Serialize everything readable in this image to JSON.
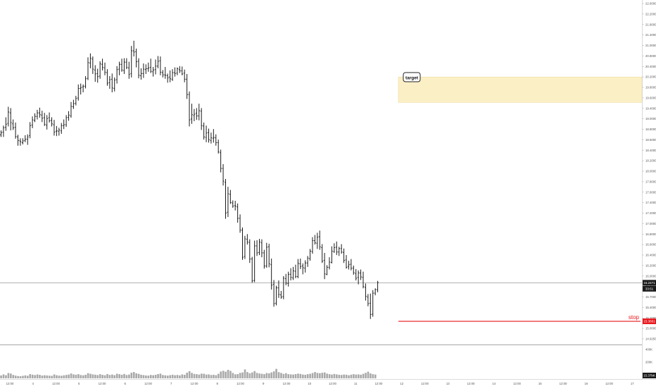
{
  "colors": {
    "background": "#ffffff",
    "bar": "#1a1a1a",
    "volume": "#a9a9a9",
    "target_fill": "#fbefc6",
    "target_border": "#eedda0",
    "stop": "#e8161b",
    "last_price_bg": "#1a1a1a",
    "stop_price_bg": "#e8161b",
    "grid_line": "#b0b0b0",
    "axis_text": "#555555"
  },
  "annotations": {
    "target_label": "target",
    "stop_label": "stop",
    "last_price": "16.2471",
    "countdown": "33:51",
    "stop_price": "15.3661",
    "volume_last": "15.37bK"
  },
  "chart_data": {
    "type": "ohlc",
    "title": "",
    "price_axis_ticks": [
      "22.6000",
      "22.2000",
      "21.8000",
      "21.4000",
      "21.0000",
      "20.8000",
      "20.4000",
      "20.2000",
      "19.8000",
      "19.6000",
      "19.4000",
      "19.0000",
      "18.8000",
      "18.6000",
      "18.4000",
      "18.2000",
      "18.0000",
      "17.8000",
      "17.6000",
      "17.4000",
      "17.2000",
      "17.0000",
      "16.8000",
      "16.6000",
      "16.4000",
      "16.2000",
      "16.0000",
      "15.8000",
      "15.7000",
      "15.4000",
      "15.2000",
      "15.0000",
      "14.9250"
    ],
    "volume_axis_ticks": [
      "400K",
      "200K"
    ],
    "time_axis_ticks": [
      "12:00",
      "4",
      "12:00",
      "5",
      "12:00",
      "6",
      "12:00",
      "7",
      "12:00",
      "8",
      "12:00",
      "9",
      "12:00",
      "10",
      "12:00",
      "11",
      "12:00",
      "12",
      "12:00",
      "13",
      "12:00",
      "14",
      "12:00",
      "15",
      "12:00",
      "16",
      "12:00",
      "17"
    ],
    "price_range": [
      14.9,
      22.63
    ],
    "volume_range": [
      0,
      420000
    ],
    "target_zone": [
      20.37,
      20.95
    ],
    "stop_level": 15.366,
    "last_price_line": 16.247,
    "bars": [
      [
        19.63,
        19.73,
        19.58,
        19.68
      ],
      [
        19.69,
        19.84,
        19.58,
        19.79
      ],
      [
        19.8,
        20.03,
        19.72,
        19.87
      ],
      [
        19.89,
        20.27,
        19.82,
        20.15
      ],
      [
        20.13,
        20.24,
        19.73,
        19.91
      ],
      [
        19.88,
        19.98,
        19.74,
        19.79
      ],
      [
        19.8,
        19.91,
        19.54,
        19.59
      ],
      [
        19.58,
        19.63,
        19.38,
        19.5
      ],
      [
        19.49,
        19.55,
        19.38,
        19.47
      ],
      [
        19.45,
        19.55,
        19.41,
        19.49
      ],
      [
        19.5,
        19.62,
        19.46,
        19.53
      ],
      [
        19.53,
        19.64,
        19.4,
        19.58
      ],
      [
        19.61,
        19.92,
        19.55,
        19.84
      ],
      [
        19.85,
        20.05,
        19.78,
        19.97
      ],
      [
        19.96,
        20.12,
        19.92,
        20.05
      ],
      [
        20.05,
        20.2,
        19.98,
        20.13
      ],
      [
        20.13,
        20.25,
        20.02,
        20.09
      ],
      [
        20.08,
        20.18,
        19.92,
        20.01
      ],
      [
        20.02,
        20.13,
        19.83,
        19.87
      ],
      [
        19.85,
        20.08,
        19.75,
        20.0
      ],
      [
        20.02,
        20.14,
        19.91,
        19.95
      ],
      [
        19.96,
        20.03,
        19.82,
        19.88
      ],
      [
        19.86,
        19.97,
        19.61,
        19.69
      ],
      [
        19.71,
        19.83,
        19.6,
        19.72
      ],
      [
        19.71,
        19.79,
        19.61,
        19.74
      ],
      [
        19.72,
        19.9,
        19.65,
        19.84
      ],
      [
        19.84,
        19.98,
        19.76,
        19.86
      ],
      [
        19.86,
        20.08,
        19.81,
        20.02
      ],
      [
        20.03,
        20.17,
        19.95,
        20.08
      ],
      [
        20.06,
        20.38,
        20.02,
        20.28
      ],
      [
        20.27,
        20.43,
        20.22,
        20.34
      ],
      [
        20.35,
        20.52,
        20.3,
        20.46
      ],
      [
        20.47,
        20.78,
        20.41,
        20.69
      ],
      [
        20.69,
        20.8,
        20.55,
        20.71
      ],
      [
        20.72,
        20.78,
        20.6,
        20.74
      ],
      [
        20.74,
        20.97,
        20.69,
        20.91
      ],
      [
        20.92,
        21.4,
        20.88,
        21.28
      ],
      [
        21.27,
        21.49,
        21.15,
        21.38
      ],
      [
        21.36,
        21.42,
        21.02,
        21.13
      ],
      [
        21.11,
        21.22,
        20.84,
        21.02
      ],
      [
        21.03,
        21.14,
        20.82,
        20.96
      ],
      [
        20.97,
        21.31,
        20.91,
        21.25
      ],
      [
        21.24,
        21.37,
        21.1,
        21.17
      ],
      [
        21.16,
        21.28,
        20.99,
        21.06
      ],
      [
        21.05,
        21.13,
        20.75,
        20.81
      ],
      [
        20.82,
        20.97,
        20.68,
        20.89
      ],
      [
        20.9,
        21.03,
        20.6,
        20.7
      ],
      [
        20.69,
        20.94,
        20.62,
        20.88
      ],
      [
        20.89,
        21.2,
        20.8,
        21.12
      ],
      [
        21.13,
        21.3,
        20.99,
        21.24
      ],
      [
        21.24,
        21.37,
        21.07,
        21.11
      ],
      [
        21.1,
        21.38,
        21.02,
        21.29
      ],
      [
        21.29,
        21.38,
        21.13,
        21.17
      ],
      [
        21.16,
        21.3,
        20.91,
        21.01
      ],
      [
        21.03,
        21.66,
        20.94,
        21.55
      ],
      [
        21.55,
        21.78,
        21.42,
        21.52
      ],
      [
        21.53,
        21.6,
        21.17,
        21.3
      ],
      [
        21.31,
        21.38,
        20.92,
        20.99
      ],
      [
        20.98,
        21.15,
        20.89,
        21.03
      ],
      [
        21.03,
        21.26,
        20.93,
        21.13
      ],
      [
        21.12,
        21.24,
        21.02,
        21.14
      ],
      [
        21.14,
        21.28,
        21.07,
        21.16
      ],
      [
        21.17,
        21.37,
        21.04,
        21.08
      ],
      [
        21.07,
        21.18,
        20.96,
        21.11
      ],
      [
        21.12,
        21.35,
        21.01,
        21.2
      ],
      [
        21.2,
        21.43,
        21.15,
        21.31
      ],
      [
        21.32,
        21.42,
        20.99,
        21.06
      ],
      [
        21.05,
        21.11,
        20.94,
        21.0
      ],
      [
        21.0,
        21.18,
        20.91,
        20.99
      ],
      [
        20.98,
        21.03,
        20.82,
        20.93
      ],
      [
        20.95,
        21.1,
        20.83,
        20.91
      ],
      [
        20.9,
        21.13,
        20.86,
        21.05
      ],
      [
        21.05,
        21.17,
        20.96,
        21.03
      ],
      [
        21.04,
        21.17,
        20.99,
        21.14
      ],
      [
        21.12,
        21.2,
        21.04,
        21.09
      ],
      [
        21.09,
        21.19,
        20.99,
        21.02
      ],
      [
        21.04,
        21.12,
        20.83,
        20.9
      ],
      [
        20.9,
        21.02,
        20.45,
        20.55
      ],
      [
        20.55,
        20.62,
        19.82,
        19.97
      ],
      [
        19.99,
        20.34,
        19.88,
        20.09
      ],
      [
        20.07,
        20.22,
        19.94,
        20.1
      ],
      [
        20.12,
        20.24,
        19.97,
        20.06
      ],
      [
        20.06,
        20.34,
        19.96,
        20.18
      ],
      [
        20.17,
        20.24,
        19.74,
        19.84
      ],
      [
        19.83,
        19.91,
        19.52,
        19.58
      ],
      [
        19.57,
        19.84,
        19.46,
        19.67
      ],
      [
        19.68,
        19.77,
        19.45,
        19.52
      ],
      [
        19.5,
        19.68,
        19.43,
        19.56
      ],
      [
        19.55,
        19.76,
        19.45,
        19.57
      ],
      [
        19.56,
        19.64,
        19.38,
        19.45
      ],
      [
        19.45,
        19.52,
        19.2,
        19.24
      ],
      [
        19.22,
        19.29,
        18.77,
        18.86
      ],
      [
        18.86,
        18.96,
        18.47,
        18.57
      ],
      [
        18.54,
        18.62,
        17.71,
        17.84
      ],
      [
        17.86,
        18.44,
        17.75,
        18.28
      ],
      [
        18.27,
        18.37,
        18.05,
        18.08
      ],
      [
        18.07,
        18.13,
        17.96,
        18.0
      ],
      [
        18.01,
        18.12,
        17.9,
        18.0
      ],
      [
        17.98,
        18.06,
        17.62,
        17.72
      ],
      [
        17.72,
        17.81,
        17.39,
        17.45
      ],
      [
        17.45,
        17.51,
        16.77,
        16.83
      ],
      [
        16.85,
        17.32,
        16.79,
        17.25
      ],
      [
        17.24,
        17.36,
        17.12,
        17.18
      ],
      [
        17.17,
        17.24,
        16.7,
        16.79
      ],
      [
        16.79,
        16.84,
        16.25,
        16.29
      ],
      [
        16.3,
        17.21,
        16.26,
        17.09
      ],
      [
        17.09,
        17.22,
        16.86,
        16.93
      ],
      [
        16.94,
        17.25,
        16.88,
        17.18
      ],
      [
        17.16,
        17.24,
        16.83,
        16.93
      ],
      [
        16.93,
        17.0,
        16.57,
        16.63
      ],
      [
        16.63,
        17.16,
        16.59,
        17.06
      ],
      [
        17.07,
        17.14,
        16.6,
        16.68
      ],
      [
        16.66,
        16.8,
        16.09,
        16.19
      ],
      [
        16.21,
        16.31,
        15.7,
        15.77
      ],
      [
        15.78,
        16.18,
        15.73,
        16.13
      ],
      [
        16.13,
        16.3,
        15.9,
        15.98
      ],
      [
        15.97,
        16.06,
        15.88,
        15.92
      ],
      [
        15.93,
        16.4,
        15.87,
        16.35
      ],
      [
        16.34,
        16.45,
        16.19,
        16.24
      ],
      [
        16.23,
        16.5,
        16.16,
        16.44
      ],
      [
        16.44,
        16.58,
        16.3,
        16.37
      ],
      [
        16.36,
        16.61,
        16.31,
        16.52
      ],
      [
        16.51,
        16.66,
        16.35,
        16.39
      ],
      [
        16.39,
        16.79,
        16.35,
        16.69
      ],
      [
        16.68,
        16.8,
        16.56,
        16.62
      ],
      [
        16.63,
        16.69,
        16.44,
        16.59
      ],
      [
        16.58,
        16.76,
        16.48,
        16.7
      ],
      [
        16.7,
        16.86,
        16.61,
        16.81
      ],
      [
        16.8,
        17.02,
        16.75,
        16.97
      ],
      [
        16.96,
        17.29,
        16.91,
        17.21
      ],
      [
        17.21,
        17.34,
        17.12,
        17.16
      ],
      [
        17.15,
        17.39,
        17.02,
        17.29
      ],
      [
        17.3,
        17.44,
        17.0,
        17.07
      ],
      [
        17.05,
        17.13,
        16.7,
        16.74
      ],
      [
        16.76,
        16.93,
        16.33,
        16.45
      ],
      [
        16.44,
        16.65,
        16.42,
        16.6
      ],
      [
        16.6,
        16.83,
        16.55,
        16.72
      ],
      [
        16.71,
        17.08,
        16.69,
        16.97
      ],
      [
        16.96,
        17.15,
        16.93,
        17.05
      ],
      [
        17.06,
        17.19,
        16.88,
        16.95
      ],
      [
        16.95,
        17.07,
        16.86,
        17.03
      ],
      [
        17.03,
        17.13,
        16.91,
        16.95
      ],
      [
        16.94,
        17.03,
        16.7,
        16.76
      ],
      [
        16.77,
        16.88,
        16.57,
        16.6
      ],
      [
        16.62,
        16.75,
        16.55,
        16.66
      ],
      [
        16.67,
        16.79,
        16.53,
        16.58
      ],
      [
        16.58,
        16.64,
        16.43,
        16.48
      ],
      [
        16.46,
        16.56,
        16.3,
        16.35
      ],
      [
        16.37,
        16.53,
        16.21,
        16.47
      ],
      [
        16.47,
        16.55,
        16.31,
        16.38
      ],
      [
        16.37,
        16.5,
        16.12,
        16.16
      ],
      [
        16.14,
        16.23,
        15.84,
        15.94
      ],
      [
        15.92,
        15.99,
        15.71,
        15.77
      ],
      [
        15.78,
        16.0,
        15.42,
        15.52
      ],
      [
        15.53,
        16.08,
        15.47,
        16.01
      ],
      [
        16.01,
        16.12,
        15.96,
        16.09
      ],
      [
        16.09,
        16.29,
        16.03,
        16.25
      ]
    ],
    "volume": [
      0.38,
      0.52,
      0.41,
      0.7,
      0.63,
      0.45,
      0.36,
      0.3,
      0.28,
      0.33,
      0.39,
      0.34,
      0.56,
      0.48,
      0.43,
      0.51,
      0.46,
      0.37,
      0.41,
      0.38,
      0.35,
      0.33,
      0.52,
      0.41,
      0.36,
      0.34,
      0.4,
      0.45,
      0.5,
      0.64,
      0.52,
      0.48,
      0.55,
      0.44,
      0.4,
      0.47,
      0.68,
      0.6,
      0.52,
      0.48,
      0.43,
      0.55,
      0.46,
      0.41,
      0.57,
      0.45,
      0.5,
      0.42,
      0.61,
      0.55,
      0.47,
      0.58,
      0.44,
      0.5,
      0.74,
      0.83,
      0.66,
      0.59,
      0.47,
      0.43,
      0.38,
      0.36,
      0.45,
      0.41,
      0.47,
      0.56,
      0.62,
      0.44,
      0.4,
      0.36,
      0.42,
      0.48,
      0.41,
      0.45,
      0.39,
      0.52,
      0.47,
      0.75,
      0.95,
      0.72,
      0.58,
      0.55,
      0.5,
      0.62,
      0.6,
      0.5,
      0.52,
      0.44,
      0.47,
      0.42,
      0.6,
      0.9,
      1.0,
      0.88,
      1.12,
      0.98,
      0.71,
      0.53,
      0.56,
      0.72,
      0.78,
      1.18,
      0.83,
      0.67,
      0.78,
      0.96,
      0.72,
      0.64,
      0.6,
      0.55,
      0.7,
      0.66,
      0.78,
      0.92,
      1.25,
      0.82,
      0.71,
      0.58,
      0.68,
      0.55,
      0.52,
      0.5,
      0.56,
      0.62,
      0.58,
      0.5,
      0.47,
      0.55,
      0.6,
      0.7,
      0.83,
      0.72,
      0.68,
      0.74,
      0.78,
      0.62,
      0.55,
      0.5,
      0.58,
      0.52,
      0.47,
      0.45,
      0.5,
      0.48,
      0.41,
      0.48,
      0.55,
      0.5,
      0.52,
      0.48,
      0.6,
      0.72,
      0.88,
      0.65,
      0.55,
      0.5
    ]
  }
}
